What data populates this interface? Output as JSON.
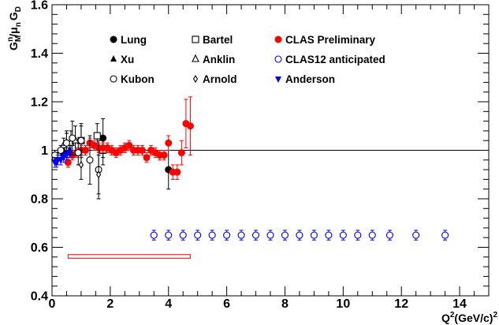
{
  "chart_data": {
    "type": "scatter",
    "xlim": [
      0,
      15
    ],
    "ylim": [
      0.4,
      1.6
    ],
    "x_ticks": [
      "0",
      "2",
      "4",
      "6",
      "8",
      "10",
      "12",
      "14"
    ],
    "x_tick_values": [
      0,
      2,
      4,
      6,
      8,
      10,
      12,
      14
    ],
    "y_ticks": [
      "0.4",
      "0.6",
      "0.8",
      "1",
      "1.2",
      "1.4",
      "1.6"
    ],
    "y_tick_values": [
      0.4,
      0.6,
      0.8,
      1.0,
      1.2,
      1.4,
      1.6
    ],
    "xlabel": {
      "main": "Q",
      "sup": "2",
      "rest": "(GeV/c)",
      "sup2": "2"
    },
    "ylabel": {
      "g": "G",
      "gsub": "M",
      "gsup": "n",
      "slash": "/",
      "mu": "μ",
      "musub": "n",
      "gd": "G",
      "gdsub": "D"
    },
    "reference_line": 1.0,
    "grid": false,
    "series": [
      {
        "name": "Lung",
        "marker": "filled-circle",
        "color": "#000000",
        "points": [
          [
            1.75,
            1.05,
            0.08
          ],
          [
            4.0,
            0.92,
            0.08
          ]
        ]
      },
      {
        "name": "Bartel",
        "marker": "open-square",
        "color": "#000000",
        "points": [
          [
            1.0,
            1.04,
            0.07
          ],
          [
            1.55,
            1.06,
            0.05
          ],
          [
            1.75,
            1.0,
            0.06
          ]
        ]
      },
      {
        "name": "CLAS Preliminary",
        "marker": "filled-circle",
        "color": "#ff0000",
        "points": [
          [
            0.55,
            0.95,
            0.02
          ],
          [
            0.7,
            0.98,
            0.02
          ],
          [
            0.85,
            0.99,
            0.02
          ],
          [
            1.0,
            1.0,
            0.02
          ],
          [
            1.15,
            1.0,
            0.02
          ],
          [
            1.3,
            1.03,
            0.02
          ],
          [
            1.45,
            1.02,
            0.02
          ],
          [
            1.6,
            1.01,
            0.02
          ],
          [
            1.75,
            1.01,
            0.02
          ],
          [
            1.9,
            1.01,
            0.02
          ],
          [
            2.05,
            1.0,
            0.02
          ],
          [
            2.2,
            0.99,
            0.02
          ],
          [
            2.35,
            1.0,
            0.02
          ],
          [
            2.5,
            1.01,
            0.02
          ],
          [
            2.65,
            1.02,
            0.02
          ],
          [
            2.8,
            1.0,
            0.02
          ],
          [
            2.95,
            1.0,
            0.02
          ],
          [
            3.1,
            1.0,
            0.02
          ],
          [
            3.25,
            0.97,
            0.02
          ],
          [
            3.4,
            1.0,
            0.02
          ],
          [
            3.55,
            0.99,
            0.02
          ],
          [
            3.7,
            0.98,
            0.02
          ],
          [
            3.85,
            0.98,
            0.02
          ],
          [
            4.0,
            1.03,
            0.03
          ],
          [
            4.15,
            0.91,
            0.03
          ],
          [
            4.3,
            0.91,
            0.03
          ],
          [
            4.45,
            0.99,
            0.05
          ],
          [
            4.6,
            1.11,
            0.1
          ],
          [
            4.75,
            1.1,
            0.12
          ]
        ]
      },
      {
        "name": "Xu",
        "marker": "filled-triangle-up",
        "color": "#000000",
        "points": [
          [
            0.1,
            0.97,
            0.02
          ],
          [
            0.2,
            0.98,
            0.02
          ],
          [
            0.3,
            0.99,
            0.02
          ],
          [
            0.4,
            1.0,
            0.02
          ],
          [
            0.5,
            0.99,
            0.02
          ],
          [
            0.6,
            1.0,
            0.02
          ]
        ]
      },
      {
        "name": "Anklin",
        "marker": "open-triangle-up",
        "color": "#000000",
        "points": [
          [
            0.1,
            0.97,
            0.02
          ],
          [
            0.25,
            0.98,
            0.02
          ],
          [
            0.4,
            1.02,
            0.03
          ],
          [
            0.5,
            1.03,
            0.04
          ],
          [
            0.65,
            1.03,
            0.05
          ],
          [
            0.8,
            1.04,
            0.06
          ]
        ]
      },
      {
        "name": "CLAS12 anticipated",
        "marker": "open-circle",
        "color": "#0000ff",
        "points": [
          [
            3.5,
            0.65,
            0.02
          ],
          [
            4.0,
            0.65,
            0.02
          ],
          [
            4.5,
            0.65,
            0.02
          ],
          [
            5.0,
            0.65,
            0.02
          ],
          [
            5.5,
            0.65,
            0.02
          ],
          [
            6.0,
            0.65,
            0.02
          ],
          [
            6.5,
            0.65,
            0.02
          ],
          [
            7.0,
            0.65,
            0.02
          ],
          [
            7.5,
            0.65,
            0.02
          ],
          [
            8.0,
            0.65,
            0.02
          ],
          [
            8.5,
            0.65,
            0.02
          ],
          [
            9.0,
            0.65,
            0.02
          ],
          [
            9.5,
            0.65,
            0.02
          ],
          [
            10.0,
            0.65,
            0.02
          ],
          [
            10.5,
            0.65,
            0.02
          ],
          [
            11.0,
            0.65,
            0.02
          ],
          [
            11.6,
            0.65,
            0.02
          ],
          [
            12.5,
            0.65,
            0.02
          ],
          [
            13.5,
            0.65,
            0.02
          ]
        ]
      },
      {
        "name": "Kubon",
        "marker": "open-circle",
        "color": "#000000",
        "points": [
          [
            0.1,
            0.98,
            0.02
          ],
          [
            0.3,
            1.0,
            0.02
          ],
          [
            0.5,
            1.03,
            0.05
          ],
          [
            0.7,
            1.05,
            0.07
          ],
          [
            0.9,
            0.99,
            0.05
          ],
          [
            1.0,
            1.04,
            0.06
          ],
          [
            1.3,
            0.96,
            0.1
          ],
          [
            1.6,
            0.92,
            0.12
          ]
        ]
      },
      {
        "name": "Arnold",
        "marker": "open-diamond",
        "color": "#000000",
        "points": [
          [
            1.0,
            0.94,
            0.06
          ],
          [
            1.6,
            0.9,
            0.08
          ]
        ]
      },
      {
        "name": "Anderson",
        "marker": "filled-triangle-down",
        "color": "#0000ff",
        "points": [
          [
            0.1,
            0.95,
            0.02
          ],
          [
            0.15,
            0.95,
            0.02
          ],
          [
            0.2,
            0.96,
            0.02
          ],
          [
            0.3,
            0.96,
            0.02
          ],
          [
            0.4,
            0.97,
            0.02
          ],
          [
            0.5,
            0.98,
            0.02
          ],
          [
            0.6,
            0.99,
            0.02
          ]
        ]
      }
    ],
    "systematic_band": {
      "color": "#ff0000",
      "x": [
        0.55,
        4.75
      ],
      "y_low": 0.555,
      "y_high": 0.57
    },
    "legend": [
      {
        "label": "Lung",
        "marker": "filled-circle",
        "color": "#000000",
        "column": 0,
        "row": 0
      },
      {
        "label": "Bartel",
        "marker": "open-square",
        "color": "#000000",
        "column": 1,
        "row": 0
      },
      {
        "label": "CLAS Preliminary",
        "marker": "filled-circle",
        "color": "#ff0000",
        "column": 2,
        "row": 0
      },
      {
        "label": "Xu",
        "marker": "filled-triangle-up",
        "color": "#000000",
        "column": 0,
        "row": 1
      },
      {
        "label": "Anklin",
        "marker": "open-triangle-up",
        "color": "#000000",
        "column": 1,
        "row": 1
      },
      {
        "label": "CLAS12 anticipated",
        "marker": "open-circle",
        "color": "#0000ff",
        "column": 2,
        "row": 1
      },
      {
        "label": "Kubon",
        "marker": "open-circle",
        "color": "#000000",
        "column": 0,
        "row": 2
      },
      {
        "label": "Arnold",
        "marker": "open-diamond",
        "color": "#000000",
        "column": 1,
        "row": 2
      },
      {
        "label": "Anderson",
        "marker": "filled-triangle-down",
        "color": "#0000ff",
        "column": 2,
        "row": 2
      }
    ],
    "legend_placement": "top-left"
  }
}
